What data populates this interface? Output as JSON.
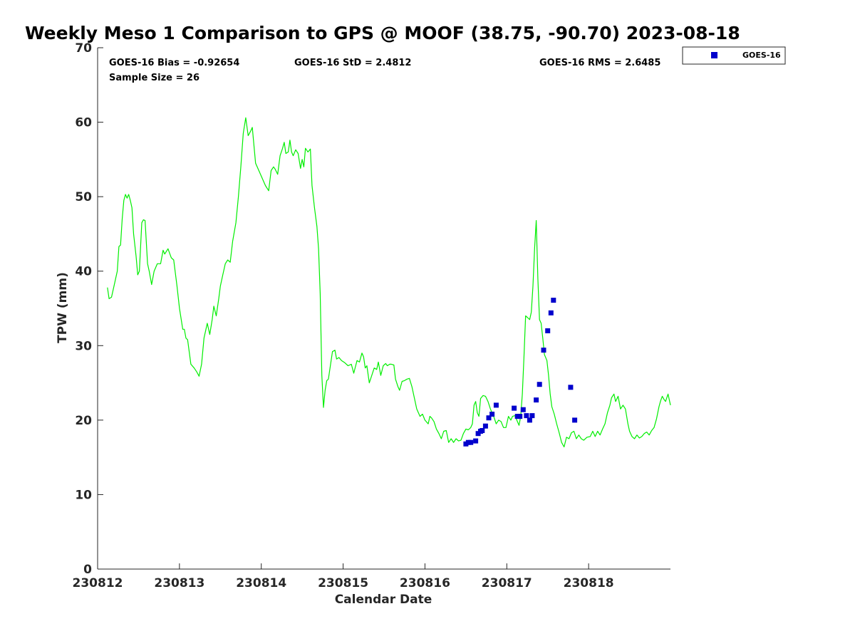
{
  "title": "Weekly Meso 1 Comparison to GPS @ MOOF (38.75, -90.70) 2023-08-18",
  "stats": {
    "bias": "GOES-16 Bias = -0.92654",
    "std": "GOES-16 StD = 2.4812",
    "rms": "GOES-16 RMS = 2.6485",
    "sample": "Sample Size = 26"
  },
  "legend": {
    "label": "GOES-16",
    "placement": "top-right-outside"
  },
  "colors": {
    "gps_line": "#00ee00",
    "goes_markers": "#0000cc",
    "axis": "#262626"
  },
  "chart_data": {
    "type": "line",
    "title": "Weekly Meso 1 Comparison to GPS @ MOOF (38.75, -90.70) 2023-08-18",
    "xlabel": "Calendar Date",
    "ylabel": "TPW (mm)",
    "xlim": [
      230812,
      230819
    ],
    "ylim": [
      0,
      70
    ],
    "x_ticks": [
      230812,
      230813,
      230814,
      230815,
      230816,
      230817,
      230818
    ],
    "x_tick_labels": [
      "230812",
      "230813",
      "230814",
      "230815",
      "230816",
      "230817",
      "230818"
    ],
    "y_ticks": [
      0,
      10,
      20,
      30,
      40,
      50,
      60,
      70
    ],
    "y_tick_labels": [
      "0",
      "10",
      "20",
      "30",
      "40",
      "50",
      "60",
      "70"
    ],
    "grid": false,
    "series": [
      {
        "type": "line",
        "points": [
          [
            230812.12,
            37.8
          ],
          [
            230812.14,
            36.3
          ],
          [
            230812.17,
            36.5
          ],
          [
            230812.2,
            38.0
          ],
          [
            230812.24,
            40.0
          ],
          [
            230812.26,
            43.3
          ],
          [
            230812.28,
            43.5
          ],
          [
            230812.3,
            47.0
          ],
          [
            230812.32,
            49.5
          ],
          [
            230812.34,
            50.3
          ],
          [
            230812.36,
            49.8
          ],
          [
            230812.38,
            50.3
          ],
          [
            230812.4,
            49.5
          ],
          [
            230812.42,
            48.5
          ],
          [
            230812.44,
            45.0
          ],
          [
            230812.47,
            42.0
          ],
          [
            230812.49,
            39.5
          ],
          [
            230812.51,
            40.0
          ],
          [
            230812.54,
            46.5
          ],
          [
            230812.56,
            46.9
          ],
          [
            230812.58,
            46.8
          ],
          [
            230812.61,
            41.0
          ],
          [
            230812.63,
            40.0
          ],
          [
            230812.66,
            38.2
          ],
          [
            230812.69,
            40.0
          ],
          [
            230812.73,
            41.0
          ],
          [
            230812.77,
            41.0
          ],
          [
            230812.8,
            42.8
          ],
          [
            230812.82,
            42.3
          ],
          [
            230812.86,
            43.0
          ],
          [
            230812.9,
            41.8
          ],
          [
            230812.93,
            41.5
          ],
          [
            230812.97,
            38.0
          ],
          [
            230813.0,
            35.0
          ],
          [
            230813.04,
            32.2
          ],
          [
            230813.06,
            32.2
          ],
          [
            230813.08,
            31.0
          ],
          [
            230813.1,
            30.8
          ],
          [
            230813.14,
            27.5
          ],
          [
            230813.18,
            27.0
          ],
          [
            230813.21,
            26.5
          ],
          [
            230813.24,
            25.9
          ],
          [
            230813.27,
            27.5
          ],
          [
            230813.3,
            31.0
          ],
          [
            230813.32,
            32.0
          ],
          [
            230813.34,
            33.0
          ],
          [
            230813.37,
            31.5
          ],
          [
            230813.4,
            33.5
          ],
          [
            230813.42,
            35.3
          ],
          [
            230813.45,
            34.0
          ],
          [
            230813.48,
            36.3
          ],
          [
            230813.5,
            38.0
          ],
          [
            230813.53,
            39.5
          ],
          [
            230813.56,
            41.0
          ],
          [
            230813.59,
            41.5
          ],
          [
            230813.62,
            41.2
          ],
          [
            230813.65,
            44.0
          ],
          [
            230813.69,
            46.5
          ],
          [
            230813.72,
            50.0
          ],
          [
            230813.75,
            54.0
          ],
          [
            230813.78,
            58.5
          ],
          [
            230813.81,
            60.6
          ],
          [
            230813.84,
            58.2
          ],
          [
            230813.87,
            58.8
          ],
          [
            230813.89,
            59.3
          ],
          [
            230813.93,
            54.5
          ],
          [
            230813.97,
            53.5
          ],
          [
            230814.01,
            52.5
          ],
          [
            230814.05,
            51.5
          ],
          [
            230814.09,
            50.8
          ],
          [
            230814.12,
            53.5
          ],
          [
            230814.15,
            54.0
          ],
          [
            230814.17,
            53.7
          ],
          [
            230814.2,
            53.0
          ],
          [
            230814.23,
            55.5
          ],
          [
            230814.26,
            56.5
          ],
          [
            230814.28,
            57.3
          ],
          [
            230814.3,
            55.8
          ],
          [
            230814.33,
            56.0
          ],
          [
            230814.35,
            57.6
          ],
          [
            230814.37,
            56.0
          ],
          [
            230814.39,
            55.5
          ],
          [
            230814.42,
            56.3
          ],
          [
            230814.45,
            55.8
          ],
          [
            230814.48,
            53.8
          ],
          [
            230814.5,
            55.0
          ],
          [
            230814.52,
            54.0
          ],
          [
            230814.54,
            56.5
          ],
          [
            230814.57,
            56.0
          ],
          [
            230814.6,
            56.4
          ],
          [
            230814.62,
            51.5
          ],
          [
            230814.65,
            48.5
          ],
          [
            230814.68,
            46.0
          ],
          [
            230814.7,
            43.0
          ],
          [
            230814.72,
            37.0
          ],
          [
            230814.74,
            26.0
          ],
          [
            230814.76,
            21.7
          ],
          [
            230814.78,
            24.0
          ],
          [
            230814.8,
            25.3
          ],
          [
            230814.82,
            25.5
          ],
          [
            230814.84,
            27.0
          ],
          [
            230814.87,
            29.2
          ],
          [
            230814.9,
            29.4
          ],
          [
            230814.92,
            28.2
          ],
          [
            230814.95,
            28.4
          ],
          [
            230814.98,
            28.0
          ],
          [
            230815.02,
            27.7
          ],
          [
            230815.06,
            27.3
          ],
          [
            230815.1,
            27.5
          ],
          [
            230815.13,
            26.3
          ],
          [
            230815.17,
            28.0
          ],
          [
            230815.2,
            27.8
          ],
          [
            230815.23,
            29.0
          ],
          [
            230815.25,
            28.5
          ],
          [
            230815.27,
            27.0
          ],
          [
            230815.29,
            27.3
          ],
          [
            230815.32,
            25.0
          ],
          [
            230815.35,
            26.0
          ],
          [
            230815.38,
            27.0
          ],
          [
            230815.41,
            26.8
          ],
          [
            230815.43,
            27.8
          ],
          [
            230815.46,
            26.0
          ],
          [
            230815.49,
            27.3
          ],
          [
            230815.52,
            27.6
          ],
          [
            230815.54,
            27.3
          ],
          [
            230815.57,
            27.5
          ],
          [
            230815.59,
            27.5
          ],
          [
            230815.62,
            27.4
          ],
          [
            230815.64,
            25.5
          ],
          [
            230815.67,
            24.5
          ],
          [
            230815.69,
            24.0
          ],
          [
            230815.72,
            25.2
          ],
          [
            230815.75,
            25.3
          ],
          [
            230815.78,
            25.5
          ],
          [
            230815.81,
            25.6
          ],
          [
            230815.84,
            24.5
          ],
          [
            230815.87,
            23.0
          ],
          [
            230815.9,
            21.5
          ],
          [
            230815.94,
            20.5
          ],
          [
            230815.97,
            20.8
          ],
          [
            230816.0,
            20.0
          ],
          [
            230816.04,
            19.5
          ],
          [
            230816.06,
            20.5
          ],
          [
            230816.08,
            20.3
          ],
          [
            230816.11,
            19.8
          ],
          [
            230816.14,
            18.8
          ],
          [
            230816.17,
            18.2
          ],
          [
            230816.2,
            17.5
          ],
          [
            230816.23,
            18.5
          ],
          [
            230816.26,
            18.6
          ],
          [
            230816.29,
            17.0
          ],
          [
            230816.32,
            17.5
          ],
          [
            230816.35,
            17.0
          ],
          [
            230816.38,
            17.5
          ],
          [
            230816.41,
            17.2
          ],
          [
            230816.44,
            17.3
          ],
          [
            230816.47,
            18.2
          ],
          [
            230816.5,
            18.8
          ],
          [
            230816.53,
            18.7
          ],
          [
            230816.56,
            19.0
          ],
          [
            230816.58,
            19.5
          ],
          [
            230816.6,
            22.0
          ],
          [
            230816.62,
            22.5
          ],
          [
            230816.64,
            21.0
          ],
          [
            230816.66,
            20.5
          ],
          [
            230816.68,
            22.9
          ],
          [
            230816.71,
            23.3
          ],
          [
            230816.74,
            23.2
          ],
          [
            230816.77,
            22.5
          ],
          [
            230816.8,
            21.5
          ],
          [
            230816.84,
            20.5
          ],
          [
            230816.87,
            19.5
          ],
          [
            230816.9,
            20.0
          ],
          [
            230816.93,
            19.8
          ],
          [
            230816.96,
            19.0
          ],
          [
            230816.99,
            19.0
          ],
          [
            230817.02,
            20.5
          ],
          [
            230817.05,
            20.0
          ],
          [
            230817.07,
            20.5
          ],
          [
            230817.1,
            20.6
          ],
          [
            230817.13,
            19.8
          ],
          [
            230817.15,
            19.3
          ],
          [
            230817.17,
            20.5
          ],
          [
            230817.19,
            23.5
          ],
          [
            230817.21,
            28.5
          ],
          [
            230817.23,
            34.0
          ],
          [
            230817.25,
            33.8
          ],
          [
            230817.28,
            33.5
          ],
          [
            230817.3,
            34.5
          ],
          [
            230817.32,
            38.0
          ],
          [
            230817.34,
            43.0
          ],
          [
            230817.36,
            46.8
          ],
          [
            230817.38,
            39.0
          ],
          [
            230817.4,
            33.5
          ],
          [
            230817.42,
            33.0
          ],
          [
            230817.44,
            31.0
          ],
          [
            230817.46,
            28.8
          ],
          [
            230817.49,
            28.0
          ],
          [
            230817.51,
            26.0
          ],
          [
            230817.53,
            23.5
          ],
          [
            230817.55,
            21.8
          ],
          [
            230817.58,
            20.8
          ],
          [
            230817.61,
            19.5
          ],
          [
            230817.64,
            18.3
          ],
          [
            230817.67,
            17.0
          ],
          [
            230817.7,
            16.4
          ],
          [
            230817.73,
            17.7
          ],
          [
            230817.76,
            17.5
          ],
          [
            230817.79,
            18.3
          ],
          [
            230817.82,
            18.5
          ],
          [
            230817.85,
            17.5
          ],
          [
            230817.88,
            18.0
          ],
          [
            230817.91,
            17.5
          ],
          [
            230817.94,
            17.3
          ],
          [
            230817.98,
            17.7
          ],
          [
            230818.02,
            17.8
          ],
          [
            230818.05,
            18.5
          ],
          [
            230818.08,
            17.8
          ],
          [
            230818.11,
            18.5
          ],
          [
            230818.14,
            18.0
          ],
          [
            230818.17,
            18.8
          ],
          [
            230818.2,
            19.5
          ],
          [
            230818.23,
            21.0
          ],
          [
            230818.26,
            22.0
          ],
          [
            230818.28,
            23.0
          ],
          [
            230818.31,
            23.5
          ],
          [
            230818.33,
            22.5
          ],
          [
            230818.36,
            23.2
          ],
          [
            230818.39,
            21.5
          ],
          [
            230818.42,
            22.0
          ],
          [
            230818.45,
            21.5
          ],
          [
            230818.48,
            19.5
          ],
          [
            230818.5,
            18.5
          ],
          [
            230818.53,
            17.8
          ],
          [
            230818.56,
            17.5
          ],
          [
            230818.59,
            18.0
          ],
          [
            230818.62,
            17.6
          ],
          [
            230818.65,
            17.8
          ],
          [
            230818.68,
            18.2
          ],
          [
            230818.71,
            18.4
          ],
          [
            230818.74,
            18.0
          ],
          [
            230818.77,
            18.6
          ],
          [
            230818.8,
            19.0
          ],
          [
            230818.83,
            20.2
          ],
          [
            230818.86,
            21.8
          ],
          [
            230818.88,
            22.6
          ],
          [
            230818.9,
            23.2
          ],
          [
            230818.92,
            22.8
          ],
          [
            230818.94,
            22.5
          ],
          [
            230818.97,
            23.5
          ],
          [
            230819.0,
            22.0
          ]
        ]
      },
      {
        "type": "scatter",
        "name": "GOES-16",
        "points": [
          [
            230816.5,
            16.8
          ],
          [
            230816.53,
            17.0
          ],
          [
            230816.56,
            17.0
          ],
          [
            230816.62,
            17.2
          ],
          [
            230816.65,
            18.2
          ],
          [
            230816.68,
            18.5
          ],
          [
            230816.7,
            18.6
          ],
          [
            230816.74,
            19.2
          ],
          [
            230816.78,
            20.3
          ],
          [
            230816.82,
            20.8
          ],
          [
            230816.87,
            22.0
          ],
          [
            230817.09,
            21.6
          ],
          [
            230817.13,
            20.5
          ],
          [
            230817.16,
            20.5
          ],
          [
            230817.2,
            21.4
          ],
          [
            230817.24,
            20.6
          ],
          [
            230817.28,
            20.0
          ],
          [
            230817.31,
            20.6
          ],
          [
            230817.36,
            22.7
          ],
          [
            230817.4,
            24.8
          ],
          [
            230817.45,
            29.4
          ],
          [
            230817.5,
            32.0
          ],
          [
            230817.54,
            34.4
          ],
          [
            230817.57,
            36.1
          ],
          [
            230817.78,
            24.4
          ],
          [
            230817.83,
            20.0
          ]
        ]
      }
    ]
  }
}
